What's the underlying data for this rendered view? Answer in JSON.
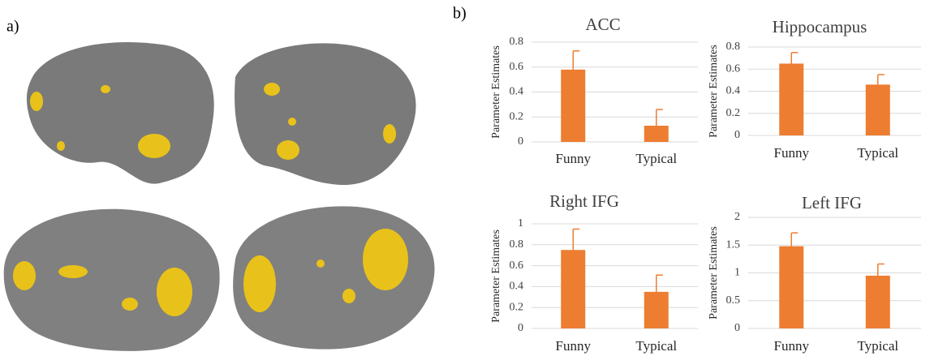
{
  "panel_labels": [
    "a)",
    "b)"
  ],
  "chart_data": [
    {
      "type": "bar",
      "title": "ACC",
      "ylabel": "Parameter Estimates",
      "categories": [
        "Funny",
        "Typical"
      ],
      "values": [
        0.58,
        0.13
      ],
      "errors": [
        0.15,
        0.13
      ],
      "color": "#ed7d31",
      "ylim": [
        0,
        0.8
      ],
      "yticks": [
        0,
        0.2,
        0.4,
        0.6,
        0.8
      ],
      "grid": true
    },
    {
      "type": "bar",
      "title": "Hippocampus",
      "ylabel": "Parameter Estimates",
      "categories": [
        "Funny",
        "Typical"
      ],
      "values": [
        0.65,
        0.46
      ],
      "errors": [
        0.1,
        0.09
      ],
      "color": "#ed7d31",
      "ylim": [
        0,
        0.8
      ],
      "yticks": [
        0,
        0.2,
        0.4,
        0.6,
        0.8
      ],
      "grid": true
    },
    {
      "type": "bar",
      "title": "Right IFG",
      "ylabel": "Parameter Estimates",
      "categories": [
        "Funny",
        "Typical"
      ],
      "values": [
        0.75,
        0.35
      ],
      "errors": [
        0.2,
        0.16
      ],
      "color": "#ed7d31",
      "ylim": [
        0,
        1
      ],
      "yticks": [
        0,
        0.2,
        0.4,
        0.6,
        0.8,
        1
      ],
      "grid": true
    },
    {
      "type": "bar",
      "title": "Left IFG",
      "ylabel": "Parameter Estimates",
      "categories": [
        "Funny",
        "Typical"
      ],
      "values": [
        1.48,
        0.95
      ],
      "errors": [
        0.24,
        0.21
      ],
      "color": "#ed7d31",
      "ylim": [
        0,
        2
      ],
      "yticks": [
        0,
        0.5,
        1,
        1.5,
        2
      ],
      "grid": true
    }
  ]
}
